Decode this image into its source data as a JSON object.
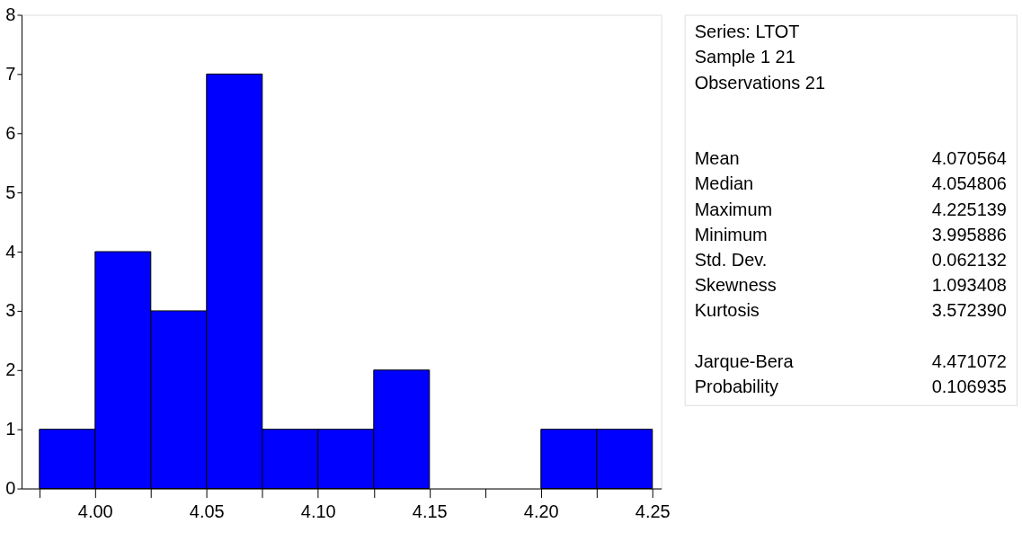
{
  "chart_data": [
    {
      "type": "histogram",
      "bins": [
        3.975,
        4.0,
        4.025,
        4.05,
        4.075,
        4.1,
        4.125,
        4.15,
        4.175,
        4.2,
        4.225,
        4.25
      ],
      "values": [
        1,
        4,
        3,
        7,
        1,
        1,
        2,
        0,
        0,
        1,
        1
      ],
      "color": "#0000ff",
      "xlim": [
        3.967,
        4.254
      ],
      "ylim": [
        0,
        8
      ],
      "xticks": [
        {
          "value": 3.975,
          "label": null
        },
        {
          "value": 4.0,
          "label": "4.00"
        },
        {
          "value": 4.025,
          "label": null
        },
        {
          "value": 4.05,
          "label": "4.05"
        },
        {
          "value": 4.075,
          "label": null
        },
        {
          "value": 4.1,
          "label": "4.10"
        },
        {
          "value": 4.125,
          "label": null
        },
        {
          "value": 4.15,
          "label": "4.15"
        },
        {
          "value": 4.175,
          "label": null
        },
        {
          "value": 4.2,
          "label": "4.20"
        },
        {
          "value": 4.225,
          "label": null
        },
        {
          "value": 4.25,
          "label": "4.25"
        }
      ],
      "yticks": [
        0,
        1,
        2,
        3,
        4,
        5,
        6,
        7,
        8
      ],
      "grid": false
    },
    {
      "type": "other",
      "annotations": [
        "Series: LTOT",
        "Sample 1 21",
        "Observations 21"
      ],
      "categories": [
        "Mean",
        "Median",
        "Maximum",
        "Minimum",
        "Std. Dev.",
        "Skewness",
        "Kurtosis",
        null,
        "Jarque-Bera",
        "Probability"
      ],
      "value_labels": [
        "4.070564",
        "4.054806",
        "4.225139",
        "3.995886",
        "0.062132",
        "1.093408",
        "3.572390",
        null,
        "4.471072",
        "0.106935"
      ]
    }
  ]
}
